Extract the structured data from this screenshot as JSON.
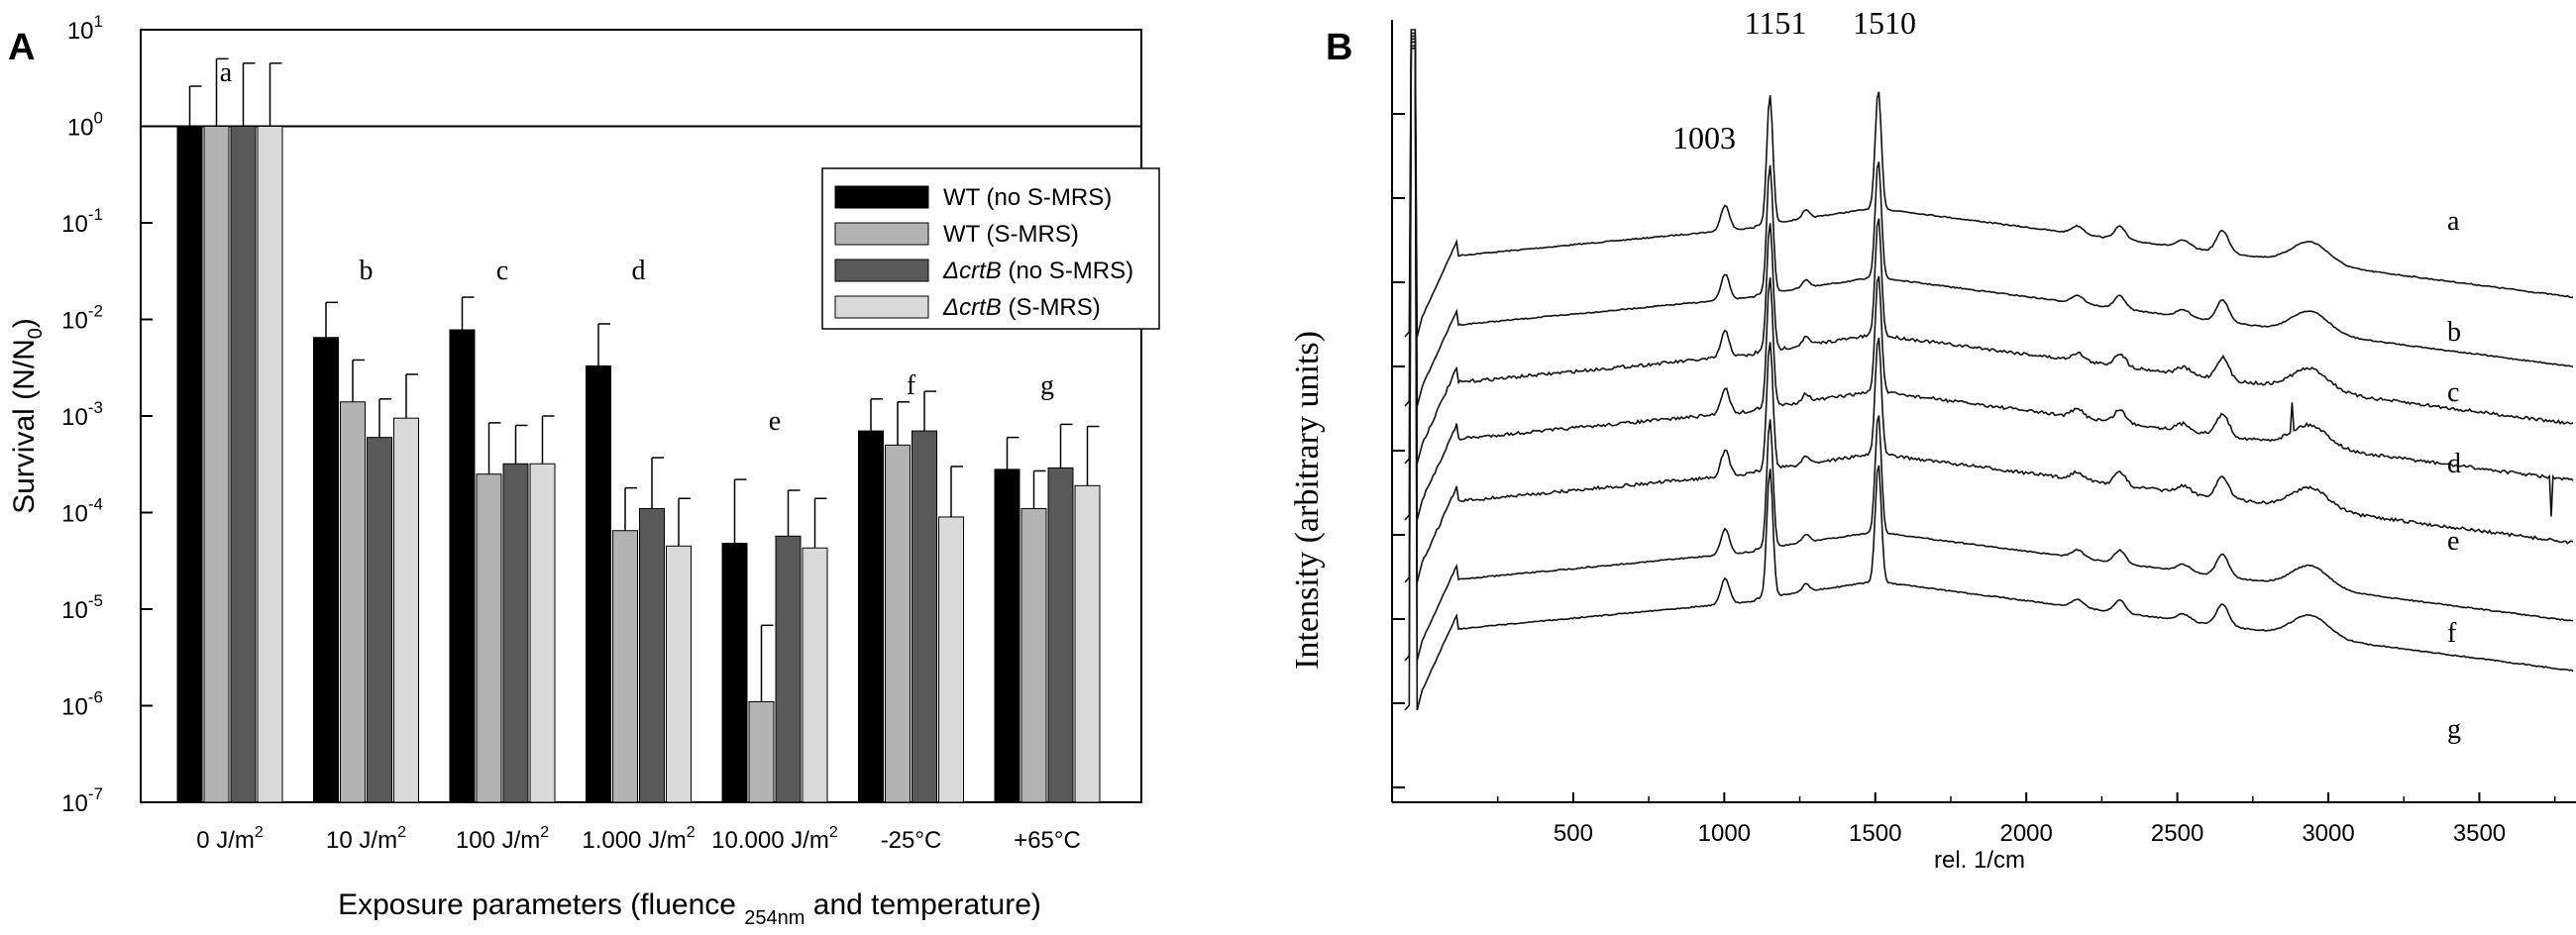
{
  "panel_a": {
    "label": "A",
    "chart_data": {
      "type": "bar",
      "ylabel": "Survival (N/N",
      "ylabel_sub": "0",
      "ylabel_close": ")",
      "xlabel": "Exposure parameters (fluence ",
      "xlabel_sub": "254nm",
      "xlabel_tail": " and temperature)",
      "yscale": "log",
      "ylim_exp": [
        -7,
        1
      ],
      "yticks": [
        {
          "base": "10",
          "exp": "1"
        },
        {
          "base": "10",
          "exp": "0"
        },
        {
          "base": "10",
          "exp": "-1"
        },
        {
          "base": "10",
          "exp": "-2"
        },
        {
          "base": "10",
          "exp": "-3"
        },
        {
          "base": "10",
          "exp": "-4"
        },
        {
          "base": "10",
          "exp": "-5"
        },
        {
          "base": "10",
          "exp": "-6"
        },
        {
          "base": "10",
          "exp": "-7"
        }
      ],
      "reference_line": 1.0,
      "categories": [
        {
          "text": "0 J/m",
          "sup": "2"
        },
        {
          "text": "10 J/m",
          "sup": "2"
        },
        {
          "text": "100 J/m",
          "sup": "2"
        },
        {
          "text": "1.000 J/m",
          "sup": "2"
        },
        {
          "text": "10.000 J/m",
          "sup": "2"
        },
        {
          "text": "-25°C",
          "sup": ""
        },
        {
          "text": "+65°C",
          "sup": ""
        }
      ],
      "group_letters": [
        "a",
        "b",
        "c",
        "d",
        "e",
        "f",
        "g"
      ],
      "series": [
        {
          "name": "WT",
          "name_tail": " (no S-MRS)",
          "italic": false,
          "color": "#000000",
          "values": [
            1.0,
            0.0065,
            0.0078,
            0.0033,
            4.8e-05,
            0.0007,
            0.00028
          ],
          "errors_upper": [
            2.6,
            0.015,
            0.017,
            0.009,
            0.00022,
            0.0015,
            0.0006
          ]
        },
        {
          "name": "WT",
          "name_tail": " (S-MRS)",
          "italic": false,
          "color": "#b3b3b3",
          "values": [
            1.0,
            0.0014,
            0.00025,
            6.5e-05,
            1.1e-06,
            0.0005,
            0.00011
          ],
          "errors_upper": [
            5.0,
            0.0038,
            0.00085,
            0.00018,
            6.8e-06,
            0.0014,
            0.00027
          ]
        },
        {
          "name": "ΔcrtB",
          "name_tail": " (no S-MRS)",
          "italic": true,
          "color": "#595959",
          "values": [
            1.0,
            0.0006,
            0.00032,
            0.00011,
            5.7e-05,
            0.0007,
            0.00029
          ],
          "errors_upper": [
            4.5,
            0.0015,
            0.0008,
            0.00037,
            0.00017,
            0.0018,
            0.00082
          ]
        },
        {
          "name": "ΔcrtB",
          "name_tail": " (S-MRS)",
          "italic": true,
          "color": "#d9d9d9",
          "values": [
            1.0,
            0.00095,
            0.00032,
            4.5e-05,
            4.3e-05,
            9e-05,
            0.00019
          ],
          "errors_upper": [
            4.5,
            0.0027,
            0.001,
            0.00014,
            0.00014,
            0.0003,
            0.00078
          ]
        }
      ]
    }
  },
  "panel_b": {
    "label": "B",
    "chart_data": {
      "type": "line",
      "ylabel": "Intensity (arbitrary units)",
      "xlabel": "rel. 1/cm",
      "xlim": [
        -100,
        3820
      ],
      "xticks": [
        500,
        1000,
        1500,
        2000,
        2500,
        3000,
        3500
      ],
      "peak_labels": [
        "1003",
        "1151",
        "1510"
      ],
      "series": [
        {
          "name": "a"
        },
        {
          "name": "b"
        },
        {
          "name": "c"
        },
        {
          "name": "d"
        },
        {
          "name": "e"
        },
        {
          "name": "f"
        },
        {
          "name": "g"
        }
      ]
    }
  }
}
